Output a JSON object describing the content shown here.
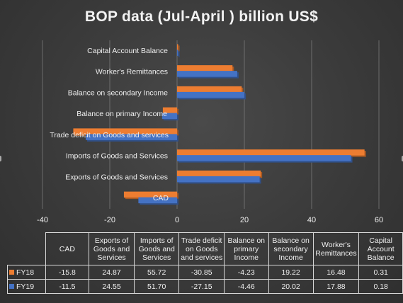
{
  "chart_data": {
    "type": "bar",
    "orientation": "horizontal",
    "title": "BOP data (Jul-April ) billion US$",
    "categories": [
      "CAD",
      "Exports of Goods and Services",
      "Imports of Goods and Services",
      "Trade deficit on Goods and services",
      "Balance on primary Income",
      "Balance on secondary Income",
      "Worker's Remittances",
      "Capital Account Balance"
    ],
    "table_headers": [
      "CAD",
      "Exports of Goods and Services",
      "Imports of Goods and Services",
      "Trade deficit on Goods and services",
      "Balance on primary Income",
      "Balance on secondary Income",
      "Worker's Remittances",
      "Capital Account Balance"
    ],
    "series": [
      {
        "name": "FY18",
        "color": "#ed7d31",
        "values": [
          -15.8,
          24.87,
          55.72,
          -30.85,
          -4.23,
          19.22,
          16.48,
          0.31
        ],
        "labels": [
          "-15.8",
          "24.87",
          "55.72",
          "-30.85",
          "-4.23",
          "19.22",
          "16.48",
          "0.31"
        ]
      },
      {
        "name": "FY19",
        "color": "#4472c4",
        "values": [
          -11.5,
          24.55,
          51.7,
          -27.15,
          -4.46,
          20.02,
          17.88,
          0.18
        ],
        "labels": [
          "-11.5",
          "24.55",
          "51.70",
          "-27.15",
          "-4.46",
          "20.02",
          "17.88",
          "0.18"
        ]
      }
    ],
    "xlim": [
      -40,
      60
    ],
    "xticks": [
      "-40",
      "-20",
      "0",
      "20",
      "40",
      "60"
    ],
    "grid": true,
    "legend": "data table"
  }
}
